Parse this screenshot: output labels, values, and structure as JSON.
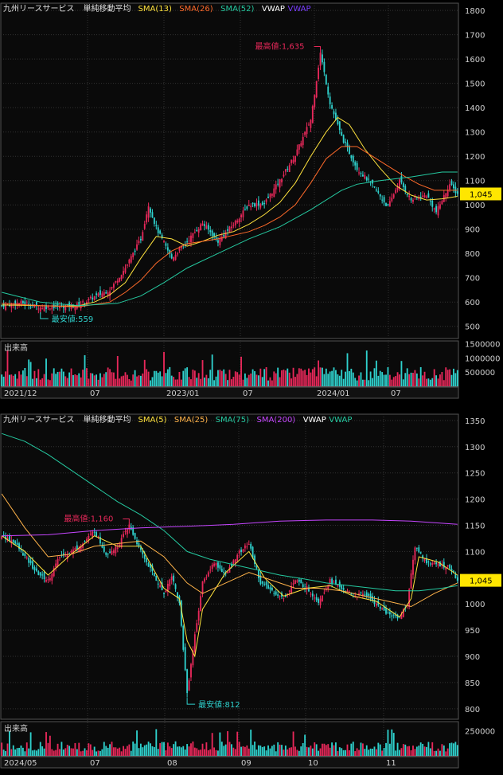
{
  "colors": {
    "background": "#0a0a0a",
    "grid": "#333333",
    "up": "#e8285a",
    "down": "#2fd1cd",
    "text": "#cfcfcf",
    "price_tag_bg": "#ffe600"
  },
  "chart_data": [
    {
      "type": "candlestick",
      "id": "weekly",
      "header": {
        "name": "九州リースサービス",
        "indicator": "単純移動平均"
      },
      "legend": [
        {
          "label": "SMA(13)",
          "color": "#ffe23d"
        },
        {
          "label": "SMA(26)",
          "color": "#ff6a2a"
        },
        {
          "label": "SMA(52)",
          "color": "#25c9a0"
        },
        {
          "label": "VWAP",
          "color": "#ffffff"
        },
        {
          "label": "VWAP",
          "color": "#7a3dff"
        }
      ],
      "y_ticks": [
        "1800",
        "1700",
        "1600",
        "1500",
        "1400",
        "1300",
        "1200",
        "1100",
        "1000",
        "900",
        "800",
        "700",
        "600",
        "500"
      ],
      "ylim": [
        450,
        1830
      ],
      "x_labels": [
        "2021/12",
        "07",
        "2023/01",
        "07",
        "2024/01",
        "07"
      ],
      "last_price": "1,045",
      "annotations": {
        "high": "最高値:1,635",
        "low": "最安値:559"
      },
      "volume": {
        "label": "出来高",
        "ticks": [
          "1500000",
          "1000000",
          "500000"
        ],
        "ymax": 1600000
      },
      "anchors": [
        [
          0,
          585
        ],
        [
          10,
          598
        ],
        [
          20,
          578
        ],
        [
          30,
          582
        ],
        [
          40,
          588
        ],
        [
          48,
          622
        ],
        [
          56,
          650
        ],
        [
          64,
          740
        ],
        [
          72,
          860
        ],
        [
          76,
          1000
        ],
        [
          80,
          905
        ],
        [
          88,
          780
        ],
        [
          96,
          850
        ],
        [
          104,
          925
        ],
        [
          112,
          850
        ],
        [
          120,
          920
        ],
        [
          128,
          1000
        ],
        [
          136,
          1005
        ],
        [
          144,
          1100
        ],
        [
          152,
          1205
        ],
        [
          160,
          1350
        ],
        [
          165,
          1625
        ],
        [
          170,
          1420
        ],
        [
          176,
          1280
        ],
        [
          184,
          1150
        ],
        [
          192,
          1080
        ],
        [
          200,
          990
        ],
        [
          206,
          1100
        ],
        [
          212,
          1020
        ],
        [
          220,
          1040
        ],
        [
          225,
          970
        ],
        [
          232,
          1085
        ],
        [
          236,
          1045
        ]
      ],
      "sma_lines": [
        {
          "pts": [
            [
              0,
              588
            ],
            [
              10,
              587
            ],
            [
              20,
              585
            ],
            [
              30,
              583
            ],
            [
              40,
              585
            ],
            [
              48,
              600
            ],
            [
              56,
              630
            ],
            [
              64,
              680
            ],
            [
              72,
              780
            ],
            [
              80,
              870
            ],
            [
              88,
              860
            ],
            [
              96,
              830
            ],
            [
              104,
              850
            ],
            [
              112,
              875
            ],
            [
              120,
              890
            ],
            [
              128,
              920
            ],
            [
              136,
              960
            ],
            [
              144,
              1010
            ],
            [
              152,
              1090
            ],
            [
              160,
              1200
            ],
            [
              168,
              1300
            ],
            [
              174,
              1360
            ],
            [
              180,
              1330
            ],
            [
              188,
              1230
            ],
            [
              196,
              1150
            ],
            [
              204,
              1080
            ],
            [
              212,
              1040
            ],
            [
              220,
              1020
            ],
            [
              228,
              1025
            ],
            [
              236,
              1035
            ]
          ],
          "color": "#ffe23d"
        },
        {
          "pts": [
            [
              0,
              595
            ],
            [
              20,
              585
            ],
            [
              40,
              580
            ],
            [
              56,
              600
            ],
            [
              64,
              640
            ],
            [
              72,
              690
            ],
            [
              80,
              760
            ],
            [
              88,
              810
            ],
            [
              96,
              840
            ],
            [
              104,
              850
            ],
            [
              112,
              860
            ],
            [
              128,
              890
            ],
            [
              136,
              915
            ],
            [
              144,
              950
            ],
            [
              152,
              1000
            ],
            [
              160,
              1090
            ],
            [
              168,
              1190
            ],
            [
              176,
              1240
            ],
            [
              184,
              1240
            ],
            [
              192,
              1200
            ],
            [
              200,
              1160
            ],
            [
              208,
              1120
            ],
            [
              216,
              1085
            ],
            [
              224,
              1060
            ],
            [
              236,
              1060
            ]
          ],
          "color": "#ff6a2a"
        },
        {
          "pts": [
            [
              0,
              640
            ],
            [
              20,
              600
            ],
            [
              40,
              585
            ],
            [
              60,
              595
            ],
            [
              72,
              625
            ],
            [
              84,
              680
            ],
            [
              96,
              740
            ],
            [
              112,
              800
            ],
            [
              128,
              860
            ],
            [
              144,
              910
            ],
            [
              160,
              980
            ],
            [
              176,
              1060
            ],
            [
              184,
              1085
            ],
            [
              196,
              1100
            ],
            [
              212,
              1115
            ],
            [
              228,
              1135
            ],
            [
              236,
              1135
            ]
          ],
          "color": "#25c9a0"
        }
      ]
    },
    {
      "type": "candlestick",
      "id": "daily",
      "header": {
        "name": "九州リースサービス",
        "indicator": "単純移動平均"
      },
      "legend": [
        {
          "label": "SMA(5)",
          "color": "#ffe23d"
        },
        {
          "label": "SMA(25)",
          "color": "#ffb34a"
        },
        {
          "label": "SMA(75)",
          "color": "#25c9a0"
        },
        {
          "label": "SMA(200)",
          "color": "#c646ff"
        },
        {
          "label": "VWAP",
          "color": "#ffffff"
        },
        {
          "label": "VWAP",
          "color": "#25c9a0"
        }
      ],
      "y_ticks": [
        "1350",
        "1300",
        "1250",
        "1200",
        "1150",
        "1100",
        "1050",
        "1000",
        "950",
        "900",
        "850",
        "800"
      ],
      "ylim": [
        780,
        1362
      ],
      "x_labels": [
        "2024/05",
        "07",
        "08",
        "09",
        "10",
        "11"
      ],
      "last_price": "1,045",
      "annotations": {
        "high": "最高値:1,160",
        "low": "最安値:812"
      },
      "volume": {
        "label": "出来高",
        "ticks": [
          "250000"
        ],
        "ymax": 340000
      },
      "anchors": [
        [
          0,
          1130
        ],
        [
          6,
          1120
        ],
        [
          12,
          1090
        ],
        [
          18,
          1060
        ],
        [
          24,
          1045
        ],
        [
          30,
          1090
        ],
        [
          36,
          1100
        ],
        [
          42,
          1115
        ],
        [
          48,
          1140
        ],
        [
          54,
          1095
        ],
        [
          60,
          1110
        ],
        [
          66,
          1150
        ],
        [
          72,
          1100
        ],
        [
          78,
          1060
        ],
        [
          84,
          1020
        ],
        [
          88,
          1055
        ],
        [
          92,
          1000
        ],
        [
          96,
          830
        ],
        [
          100,
          940
        ],
        [
          104,
          1040
        ],
        [
          110,
          1080
        ],
        [
          116,
          1055
        ],
        [
          122,
          1095
        ],
        [
          128,
          1115
        ],
        [
          134,
          1040
        ],
        [
          140,
          1025
        ],
        [
          146,
          1010
        ],
        [
          152,
          1045
        ],
        [
          158,
          1030
        ],
        [
          164,
          1005
        ],
        [
          170,
          1045
        ],
        [
          176,
          1030
        ],
        [
          182,
          1015
        ],
        [
          188,
          1020
        ],
        [
          194,
          1000
        ],
        [
          200,
          980
        ],
        [
          206,
          975
        ],
        [
          210,
          1000
        ],
        [
          214,
          1110
        ],
        [
          220,
          1080
        ],
        [
          226,
          1075
        ],
        [
          232,
          1070
        ],
        [
          236,
          1045
        ]
      ],
      "sma_lines": [
        {
          "pts": [
            [
              0,
              1130
            ],
            [
              12,
              1100
            ],
            [
              24,
              1055
            ],
            [
              36,
              1095
            ],
            [
              48,
              1130
            ],
            [
              60,
              1110
            ],
            [
              72,
              1110
            ],
            [
              84,
              1030
            ],
            [
              92,
              1010
            ],
            [
              96,
              930
            ],
            [
              100,
              900
            ],
            [
              104,
              990
            ],
            [
              116,
              1060
            ],
            [
              128,
              1100
            ],
            [
              136,
              1050
            ],
            [
              146,
              1015
            ],
            [
              158,
              1030
            ],
            [
              170,
              1035
            ],
            [
              182,
              1015
            ],
            [
              194,
              1005
            ],
            [
              206,
              975
            ],
            [
              212,
              1010
            ],
            [
              216,
              1090
            ],
            [
              226,
              1080
            ],
            [
              236,
              1055
            ]
          ],
          "color": "#ffe23d"
        },
        {
          "pts": [
            [
              0,
              1210
            ],
            [
              12,
              1145
            ],
            [
              24,
              1090
            ],
            [
              36,
              1095
            ],
            [
              48,
              1110
            ],
            [
              60,
              1115
            ],
            [
              72,
              1120
            ],
            [
              84,
              1090
            ],
            [
              96,
              1040
            ],
            [
              104,
              1020
            ],
            [
              116,
              1040
            ],
            [
              128,
              1060
            ],
            [
              140,
              1045
            ],
            [
              152,
              1030
            ],
            [
              164,
              1030
            ],
            [
              176,
              1025
            ],
            [
              188,
              1015
            ],
            [
              200,
              1005
            ],
            [
              212,
              995
            ],
            [
              224,
              1020
            ],
            [
              236,
              1040
            ]
          ],
          "color": "#ffb34a"
        },
        {
          "pts": [
            [
              0,
              1325
            ],
            [
              12,
              1310
            ],
            [
              24,
              1285
            ],
            [
              36,
              1255
            ],
            [
              48,
              1225
            ],
            [
              60,
              1195
            ],
            [
              72,
              1170
            ],
            [
              84,
              1140
            ],
            [
              96,
              1100
            ],
            [
              108,
              1085
            ],
            [
              120,
              1075
            ],
            [
              132,
              1065
            ],
            [
              144,
              1055
            ],
            [
              156,
              1048
            ],
            [
              168,
              1040
            ],
            [
              180,
              1035
            ],
            [
              192,
              1030
            ],
            [
              204,
              1025
            ],
            [
              216,
              1025
            ],
            [
              228,
              1030
            ],
            [
              236,
              1035
            ]
          ],
          "color": "#25c9a0"
        },
        {
          "pts": [
            [
              0,
              1130
            ],
            [
              24,
              1132
            ],
            [
              48,
              1140
            ],
            [
              72,
              1145
            ],
            [
              96,
              1148
            ],
            [
              120,
              1152
            ],
            [
              144,
              1158
            ],
            [
              168,
              1160
            ],
            [
              192,
              1160
            ],
            [
              212,
              1158
            ],
            [
              236,
              1152
            ]
          ],
          "color": "#c646ff"
        }
      ]
    }
  ]
}
